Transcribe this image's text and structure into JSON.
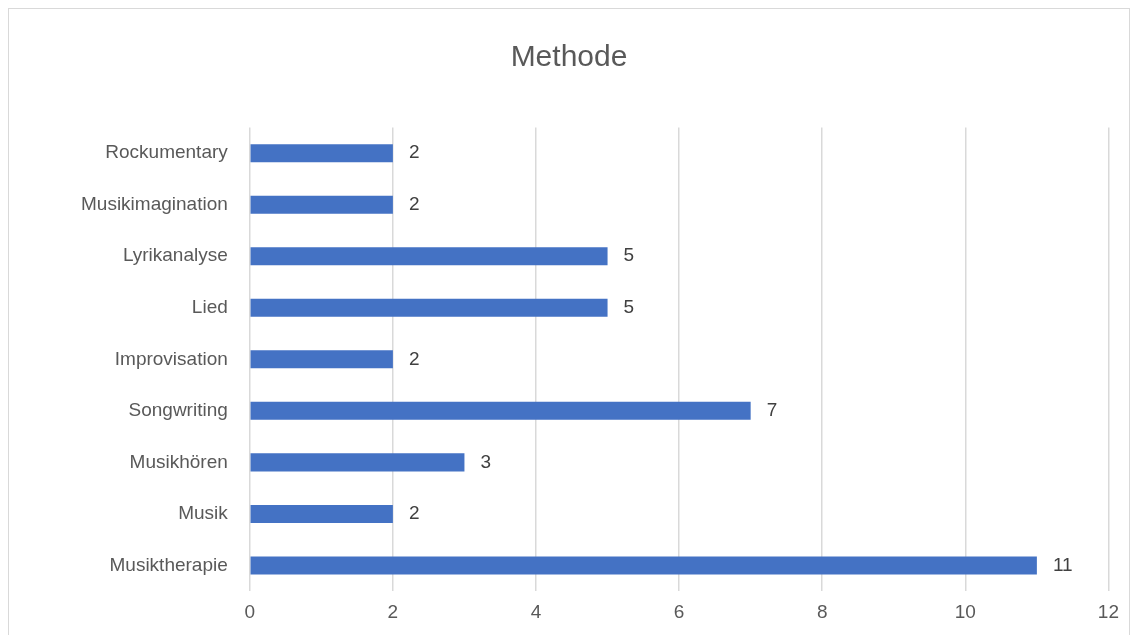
{
  "chart_data": {
    "type": "bar",
    "title": "Methode",
    "orientation": "horizontal",
    "categories": [
      "Rockumentary",
      "Musikimagination",
      "Lyrikanalyse",
      "Lied",
      "Improvisation",
      "Songwriting",
      "Musikhören",
      "Musik",
      "Musiktherapie"
    ],
    "values": [
      2,
      2,
      5,
      5,
      2,
      7,
      3,
      2,
      11
    ],
    "color": "#4472c4",
    "xlim": [
      0,
      12
    ],
    "xticks": [
      0,
      2,
      4,
      6,
      8,
      10,
      12
    ],
    "grid": "x",
    "data_labels": true,
    "legend": false
  }
}
